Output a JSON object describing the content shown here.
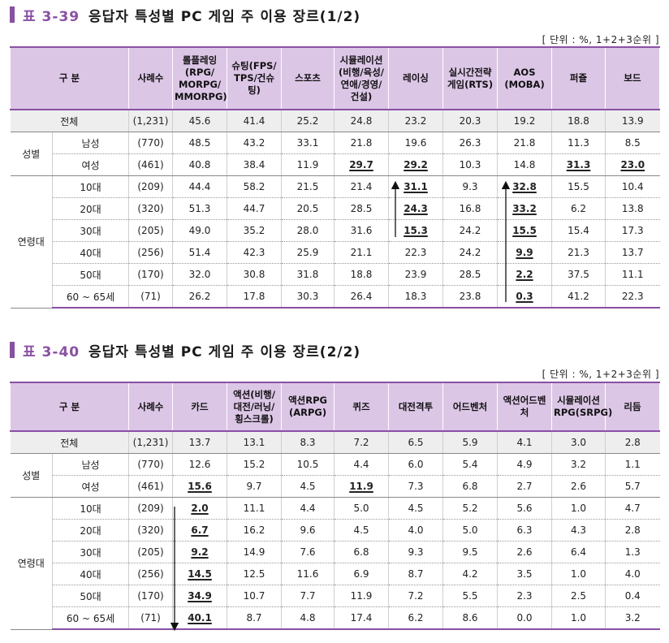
{
  "t1": {
    "title_num": "표 3-39",
    "title_text": "응답자 특성별 PC 게임 주 이용 장르(1/2)",
    "unit": "[ 단위 : %, 1+2+3순위 ]",
    "headers": [
      "구 분",
      "사례수",
      "롤플레잉\n(RPG/\nMORPG/\nMMORPG)",
      "슈팅(FPS/\nTPS/건슈팅)",
      "스포츠",
      "시뮬레이션\n(비행/육성/\n연애/경영/\n건설)",
      "레이싱",
      "실시간전략\n게임(RTS)",
      "AOS\n(MOBA)",
      "퍼즐",
      "보드"
    ],
    "total": {
      "label": "전체",
      "n": "(1,231)",
      "v": [
        "45.6",
        "41.4",
        "25.2",
        "24.8",
        "23.2",
        "20.3",
        "19.2",
        "18.8",
        "13.9"
      ]
    },
    "gender_label": "성별",
    "gender": [
      {
        "label": "남성",
        "n": "(770)",
        "v": [
          "48.5",
          "43.2",
          "33.1",
          "21.8",
          "19.6",
          "26.3",
          "21.8",
          "11.3",
          "8.5"
        ]
      },
      {
        "label": "여성",
        "n": "(461)",
        "v": [
          "40.8",
          "38.4",
          "11.9",
          "29.7",
          "29.2",
          "10.3",
          "14.8",
          "31.3",
          "23.0"
        ]
      }
    ],
    "age_label": "연령대",
    "age": [
      {
        "label": "10대",
        "n": "(209)",
        "v": [
          "44.4",
          "58.2",
          "21.5",
          "21.4",
          "31.1",
          "9.3",
          "32.8",
          "15.5",
          "10.4"
        ]
      },
      {
        "label": "20대",
        "n": "(320)",
        "v": [
          "51.3",
          "44.7",
          "20.5",
          "28.5",
          "24.3",
          "16.8",
          "33.2",
          "6.2",
          "13.8"
        ]
      },
      {
        "label": "30대",
        "n": "(205)",
        "v": [
          "49.0",
          "35.2",
          "28.0",
          "31.6",
          "15.3",
          "24.2",
          "15.5",
          "15.4",
          "17.3"
        ]
      },
      {
        "label": "40대",
        "n": "(256)",
        "v": [
          "51.4",
          "42.3",
          "25.9",
          "21.1",
          "22.3",
          "24.2",
          "9.9",
          "21.3",
          "13.7"
        ]
      },
      {
        "label": "50대",
        "n": "(170)",
        "v": [
          "32.0",
          "30.8",
          "31.8",
          "18.8",
          "23.9",
          "28.5",
          "2.2",
          "37.5",
          "11.1"
        ]
      },
      {
        "label": "60 ~ 65세",
        "n": "(71)",
        "v": [
          "26.2",
          "17.8",
          "30.3",
          "26.4",
          "18.3",
          "23.8",
          "0.3",
          "41.2",
          "22.3"
        ]
      }
    ]
  },
  "t2": {
    "title_num": "표 3-40",
    "title_text": "응답자 특성별 PC 게임 주 이용 장르(2/2)",
    "unit": "[ 단위 : %, 1+2+3순위 ]",
    "headers": [
      "구 분",
      "사례수",
      "카드",
      "액션(비행/\n대전/러닝/\n횡스크롤)",
      "액션RPG\n(ARPG)",
      "퀴즈",
      "대전격투",
      "어드벤처",
      "액션어드벤처",
      "시뮬레이션\nRPG(SRPG)",
      "리듬"
    ],
    "total": {
      "label": "전체",
      "n": "(1,231)",
      "v": [
        "13.7",
        "13.1",
        "8.3",
        "7.2",
        "6.5",
        "5.9",
        "4.1",
        "3.0",
        "2.8"
      ]
    },
    "gender_label": "성별",
    "gender": [
      {
        "label": "남성",
        "n": "(770)",
        "v": [
          "12.6",
          "15.2",
          "10.5",
          "4.4",
          "6.0",
          "5.4",
          "4.9",
          "3.2",
          "1.1"
        ]
      },
      {
        "label": "여성",
        "n": "(461)",
        "v": [
          "15.6",
          "9.7",
          "4.5",
          "11.9",
          "7.3",
          "6.8",
          "2.7",
          "2.6",
          "5.7"
        ]
      }
    ],
    "age_label": "연령대",
    "age": [
      {
        "label": "10대",
        "n": "(209)",
        "v": [
          "2.0",
          "11.1",
          "4.4",
          "5.0",
          "4.5",
          "5.2",
          "5.6",
          "1.0",
          "4.7"
        ]
      },
      {
        "label": "20대",
        "n": "(320)",
        "v": [
          "6.7",
          "16.2",
          "9.6",
          "4.5",
          "4.0",
          "5.0",
          "6.3",
          "4.3",
          "2.8"
        ]
      },
      {
        "label": "30대",
        "n": "(205)",
        "v": [
          "9.2",
          "14.9",
          "7.6",
          "6.8",
          "9.3",
          "9.5",
          "2.6",
          "6.4",
          "1.3"
        ]
      },
      {
        "label": "40대",
        "n": "(256)",
        "v": [
          "14.5",
          "12.5",
          "11.6",
          "6.9",
          "8.7",
          "4.2",
          "3.5",
          "1.0",
          "4.0"
        ]
      },
      {
        "label": "50대",
        "n": "(170)",
        "v": [
          "34.9",
          "10.7",
          "7.7",
          "11.9",
          "7.2",
          "5.5",
          "2.3",
          "2.5",
          "0.4"
        ]
      },
      {
        "label": "60 ~ 65세",
        "n": "(71)",
        "v": [
          "40.1",
          "8.7",
          "4.8",
          "17.4",
          "6.2",
          "8.6",
          "0.0",
          "1.0",
          "3.2"
        ]
      }
    ]
  },
  "highlights": {
    "t1": {
      "gender.1": [
        3,
        4,
        7,
        8
      ],
      "age.0": [
        4,
        6
      ],
      "age.1": [
        4,
        6
      ],
      "age.2": [
        4,
        6
      ],
      "age.3": [
        6
      ],
      "age.4": [
        6
      ],
      "age.5": [
        6
      ]
    },
    "t2": {
      "gender.1": [
        0,
        3
      ],
      "age.0": [
        0
      ],
      "age.1": [
        0
      ],
      "age.2": [
        0
      ],
      "age.3": [
        0
      ],
      "age.4": [
        0
      ],
      "age.5": [
        0
      ]
    }
  },
  "colors": {
    "accent": "#8a4fa6",
    "header_bg": "#dcc6e6",
    "total_bg": "#eeeeee"
  }
}
